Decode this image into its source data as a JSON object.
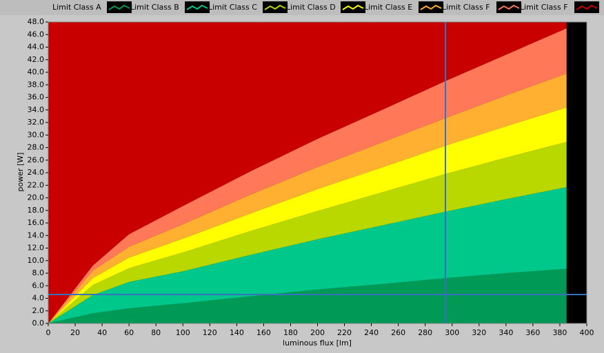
{
  "chart_data": {
    "type": "stacked-area",
    "x_label": "luminous flux [lm]",
    "y_label": "power [W]",
    "x": [
      0,
      33,
      60,
      100,
      150,
      200,
      250,
      295,
      340,
      385
    ],
    "series": [
      {
        "name": "Limit Class A",
        "color": "#009a57",
        "values": [
          0,
          1.6,
          2.4,
          3.2,
          4.3,
          5.4,
          6.3,
          7.2,
          8.0,
          8.7
        ]
      },
      {
        "name": "Limit Class B",
        "color": "#00c88a",
        "values": [
          0,
          2.9,
          4.2,
          5.1,
          6.6,
          8.0,
          9.4,
          10.6,
          11.8,
          13.0
        ]
      },
      {
        "name": "Limit Class C",
        "color": "#b8d800",
        "values": [
          0,
          1.6,
          2.2,
          3.0,
          3.8,
          4.5,
          5.3,
          6.0,
          6.6,
          7.2
        ]
      },
      {
        "name": "Limit Class D",
        "color": "#ffff00",
        "values": [
          0,
          1.1,
          1.7,
          2.2,
          2.8,
          3.5,
          4.0,
          4.5,
          5.0,
          5.5
        ]
      },
      {
        "name": "Limit Class E",
        "color": "#ffb030",
        "values": [
          0,
          1.2,
          1.7,
          2.3,
          3.0,
          3.5,
          4.0,
          4.4,
          4.9,
          5.4
        ]
      },
      {
        "name": "Limit Class F",
        "color": "#ff7858",
        "values": [
          0,
          0.8,
          2.0,
          2.9,
          3.7,
          4.5,
          5.2,
          5.9,
          6.5,
          7.2
        ]
      },
      {
        "name": "Limit Class F",
        "color": "#c80000",
        "values": [
          48,
          38.8,
          33.8,
          29.3,
          23.8,
          18.6,
          13.8,
          9.4,
          5.2,
          1.0
        ]
      }
    ],
    "xlim": [
      0,
      400
    ],
    "xticks": [
      0,
      20,
      40,
      60,
      80,
      100,
      120,
      140,
      160,
      180,
      200,
      220,
      240,
      260,
      280,
      300,
      320,
      340,
      360,
      380,
      400
    ],
    "ylim": [
      0,
      48
    ],
    "yticks": [
      {
        "value": 0,
        "label": "0.0"
      },
      {
        "value": 2,
        "label": "2.0"
      },
      {
        "value": 4,
        "label": "4.0"
      },
      {
        "value": 6,
        "label": "6.0"
      },
      {
        "value": 8,
        "label": "8.0"
      },
      {
        "value": 10,
        "label": "10.0"
      },
      {
        "value": 12,
        "label": "12.0"
      },
      {
        "value": 14,
        "label": "14.0"
      },
      {
        "value": 16,
        "label": "16.0"
      },
      {
        "value": 18,
        "label": "18.0"
      },
      {
        "value": 20,
        "label": "20.0"
      },
      {
        "value": 22,
        "label": "22.0"
      },
      {
        "value": 24,
        "label": "24.0"
      },
      {
        "value": 26,
        "label": "26.0"
      },
      {
        "value": 28,
        "label": "28.0"
      },
      {
        "value": 30,
        "label": "30.0"
      },
      {
        "value": 32,
        "label": "32.0"
      },
      {
        "value": 34,
        "label": "34.0"
      },
      {
        "value": 36,
        "label": "36.0"
      },
      {
        "value": 38,
        "label": "38.0"
      },
      {
        "value": 40,
        "label": "40.0"
      },
      {
        "value": 42,
        "label": "42.0"
      },
      {
        "value": 44,
        "label": "44.0"
      },
      {
        "value": 46,
        "label": "46.0"
      },
      {
        "value": 48,
        "label": "48.0"
      }
    ],
    "cursor": {
      "x": 295,
      "y": 4.6,
      "color": "#3a6fc0"
    },
    "plot_background": "#000000"
  }
}
